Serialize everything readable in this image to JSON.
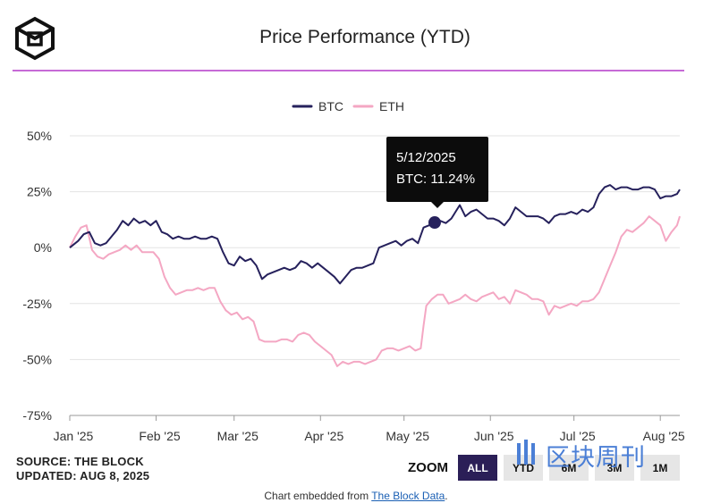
{
  "header": {
    "title": "Price Performance (YTD)",
    "logo": "the-block-cube-logo"
  },
  "legend": [
    {
      "name": "BTC",
      "color": "#26215c"
    },
    {
      "name": "ETH",
      "color": "#f4a7c3"
    }
  ],
  "tooltip": {
    "date": "5/12/2025",
    "text": "BTC: 11.24%"
  },
  "source": {
    "line1": "SOURCE: THE BLOCK",
    "line2": "UPDATED: AUG 8, 2025"
  },
  "zoom": {
    "label": "ZOOM",
    "buttons": [
      "ALL",
      "YTD",
      "6M",
      "3M",
      "1M"
    ],
    "active": "ALL"
  },
  "footer": {
    "prefix": "Chart embedded from ",
    "link": "The Block Data",
    "suffix": "."
  },
  "watermark": {
    "text": "区块周刊"
  },
  "chart_data": {
    "type": "line",
    "title": "Price Performance (YTD)",
    "x_start": "2025-01-01",
    "x_end": "2025-08-08",
    "xticks": [
      {
        "label": "Jan '25",
        "date": "2025-01-01"
      },
      {
        "label": "Feb '25",
        "date": "2025-02-01"
      },
      {
        "label": "Mar '25",
        "date": "2025-03-01"
      },
      {
        "label": "Apr '25",
        "date": "2025-04-01"
      },
      {
        "label": "May '25",
        "date": "2025-05-01"
      },
      {
        "label": "Jun '25",
        "date": "2025-06-01"
      },
      {
        "label": "Jul '25",
        "date": "2025-07-01"
      },
      {
        "label": "Aug '25",
        "date": "2025-08-01"
      }
    ],
    "yticks": [
      50,
      25,
      0,
      -25,
      -50,
      -75
    ],
    "ytick_labels": [
      "50%",
      "25%",
      "0%",
      "-25%",
      "-50%",
      "-75%"
    ],
    "ylim": [
      -75,
      50
    ],
    "grid": true,
    "legend_position": "top-center",
    "highlight": {
      "series": "BTC",
      "date": "2025-05-12",
      "value": 11.24
    },
    "series": [
      {
        "name": "BTC",
        "color": "#26215c",
        "points": [
          [
            "2025-01-01",
            0
          ],
          [
            "2025-01-04",
            3
          ],
          [
            "2025-01-06",
            6
          ],
          [
            "2025-01-08",
            7
          ],
          [
            "2025-01-10",
            2
          ],
          [
            "2025-01-12",
            1
          ],
          [
            "2025-01-14",
            2
          ],
          [
            "2025-01-16",
            5
          ],
          [
            "2025-01-18",
            8
          ],
          [
            "2025-01-20",
            12
          ],
          [
            "2025-01-22",
            10
          ],
          [
            "2025-01-24",
            13
          ],
          [
            "2025-01-26",
            11
          ],
          [
            "2025-01-28",
            12
          ],
          [
            "2025-01-30",
            10
          ],
          [
            "2025-02-01",
            12
          ],
          [
            "2025-02-03",
            7
          ],
          [
            "2025-02-05",
            6
          ],
          [
            "2025-02-07",
            4
          ],
          [
            "2025-02-09",
            5
          ],
          [
            "2025-02-11",
            4
          ],
          [
            "2025-02-13",
            4
          ],
          [
            "2025-02-15",
            5
          ],
          [
            "2025-02-17",
            4
          ],
          [
            "2025-02-19",
            4
          ],
          [
            "2025-02-21",
            5
          ],
          [
            "2025-02-23",
            4
          ],
          [
            "2025-02-25",
            -2
          ],
          [
            "2025-02-27",
            -7
          ],
          [
            "2025-03-01",
            -8
          ],
          [
            "2025-03-03",
            -4
          ],
          [
            "2025-03-05",
            -6
          ],
          [
            "2025-03-07",
            -5
          ],
          [
            "2025-03-09",
            -8
          ],
          [
            "2025-03-11",
            -14
          ],
          [
            "2025-03-13",
            -12
          ],
          [
            "2025-03-15",
            -11
          ],
          [
            "2025-03-17",
            -10
          ],
          [
            "2025-03-19",
            -9
          ],
          [
            "2025-03-21",
            -10
          ],
          [
            "2025-03-23",
            -9
          ],
          [
            "2025-03-25",
            -6
          ],
          [
            "2025-03-27",
            -7
          ],
          [
            "2025-03-29",
            -9
          ],
          [
            "2025-03-31",
            -7
          ],
          [
            "2025-04-02",
            -9
          ],
          [
            "2025-04-04",
            -11
          ],
          [
            "2025-04-06",
            -13
          ],
          [
            "2025-04-08",
            -16
          ],
          [
            "2025-04-10",
            -13
          ],
          [
            "2025-04-12",
            -10
          ],
          [
            "2025-04-14",
            -9
          ],
          [
            "2025-04-16",
            -9
          ],
          [
            "2025-04-18",
            -8
          ],
          [
            "2025-04-20",
            -7
          ],
          [
            "2025-04-22",
            0
          ],
          [
            "2025-04-24",
            1
          ],
          [
            "2025-04-26",
            2
          ],
          [
            "2025-04-28",
            3
          ],
          [
            "2025-04-30",
            1
          ],
          [
            "2025-05-02",
            3
          ],
          [
            "2025-05-04",
            4
          ],
          [
            "2025-05-06",
            2
          ],
          [
            "2025-05-08",
            9
          ],
          [
            "2025-05-10",
            10
          ],
          [
            "2025-05-12",
            11.24
          ],
          [
            "2025-05-14",
            12
          ],
          [
            "2025-05-16",
            11
          ],
          [
            "2025-05-18",
            13
          ],
          [
            "2025-05-21",
            19
          ],
          [
            "2025-05-23",
            14
          ],
          [
            "2025-05-25",
            16
          ],
          [
            "2025-05-27",
            17
          ],
          [
            "2025-05-29",
            15
          ],
          [
            "2025-05-31",
            13
          ],
          [
            "2025-06-02",
            13
          ],
          [
            "2025-06-04",
            12
          ],
          [
            "2025-06-06",
            10
          ],
          [
            "2025-06-08",
            13
          ],
          [
            "2025-06-10",
            18
          ],
          [
            "2025-06-12",
            16
          ],
          [
            "2025-06-14",
            14
          ],
          [
            "2025-06-16",
            14
          ],
          [
            "2025-06-18",
            14
          ],
          [
            "2025-06-20",
            13
          ],
          [
            "2025-06-22",
            11
          ],
          [
            "2025-06-24",
            14
          ],
          [
            "2025-06-26",
            15
          ],
          [
            "2025-06-28",
            15
          ],
          [
            "2025-06-30",
            16
          ],
          [
            "2025-07-02",
            15
          ],
          [
            "2025-07-04",
            17
          ],
          [
            "2025-07-06",
            16
          ],
          [
            "2025-07-08",
            18
          ],
          [
            "2025-07-10",
            24
          ],
          [
            "2025-07-12",
            27
          ],
          [
            "2025-07-14",
            28
          ],
          [
            "2025-07-16",
            26
          ],
          [
            "2025-07-18",
            27
          ],
          [
            "2025-07-20",
            27
          ],
          [
            "2025-07-22",
            26
          ],
          [
            "2025-07-24",
            26
          ],
          [
            "2025-07-26",
            27
          ],
          [
            "2025-07-28",
            27
          ],
          [
            "2025-07-30",
            26
          ],
          [
            "2025-08-01",
            22
          ],
          [
            "2025-08-03",
            23
          ],
          [
            "2025-08-05",
            23
          ],
          [
            "2025-08-07",
            24
          ],
          [
            "2025-08-08",
            26
          ]
        ]
      },
      {
        "name": "ETH",
        "color": "#f4a7c3",
        "points": [
          [
            "2025-01-01",
            0
          ],
          [
            "2025-01-03",
            5
          ],
          [
            "2025-01-05",
            9
          ],
          [
            "2025-01-07",
            10
          ],
          [
            "2025-01-09",
            -1
          ],
          [
            "2025-01-11",
            -4
          ],
          [
            "2025-01-13",
            -5
          ],
          [
            "2025-01-15",
            -3
          ],
          [
            "2025-01-17",
            -2
          ],
          [
            "2025-01-19",
            -1
          ],
          [
            "2025-01-21",
            1
          ],
          [
            "2025-01-23",
            -1
          ],
          [
            "2025-01-25",
            1
          ],
          [
            "2025-01-27",
            -2
          ],
          [
            "2025-01-29",
            -2
          ],
          [
            "2025-01-31",
            -2
          ],
          [
            "2025-02-02",
            -5
          ],
          [
            "2025-02-04",
            -13
          ],
          [
            "2025-02-06",
            -18
          ],
          [
            "2025-02-08",
            -21
          ],
          [
            "2025-02-10",
            -20
          ],
          [
            "2025-02-12",
            -19
          ],
          [
            "2025-02-14",
            -19
          ],
          [
            "2025-02-16",
            -18
          ],
          [
            "2025-02-18",
            -19
          ],
          [
            "2025-02-20",
            -18
          ],
          [
            "2025-02-22",
            -18
          ],
          [
            "2025-02-24",
            -24
          ],
          [
            "2025-02-26",
            -28
          ],
          [
            "2025-02-28",
            -30
          ],
          [
            "2025-03-02",
            -29
          ],
          [
            "2025-03-04",
            -32
          ],
          [
            "2025-03-06",
            -31
          ],
          [
            "2025-03-08",
            -33
          ],
          [
            "2025-03-10",
            -41
          ],
          [
            "2025-03-12",
            -42
          ],
          [
            "2025-03-14",
            -42
          ],
          [
            "2025-03-16",
            -42
          ],
          [
            "2025-03-18",
            -41
          ],
          [
            "2025-03-20",
            -41
          ],
          [
            "2025-03-22",
            -42
          ],
          [
            "2025-03-24",
            -39
          ],
          [
            "2025-03-26",
            -38
          ],
          [
            "2025-03-28",
            -39
          ],
          [
            "2025-03-30",
            -42
          ],
          [
            "2025-04-01",
            -44
          ],
          [
            "2025-04-03",
            -46
          ],
          [
            "2025-04-05",
            -48
          ],
          [
            "2025-04-07",
            -53
          ],
          [
            "2025-04-09",
            -51
          ],
          [
            "2025-04-11",
            -52
          ],
          [
            "2025-04-13",
            -51
          ],
          [
            "2025-04-15",
            -51
          ],
          [
            "2025-04-17",
            -52
          ],
          [
            "2025-04-19",
            -51
          ],
          [
            "2025-04-21",
            -50
          ],
          [
            "2025-04-23",
            -46
          ],
          [
            "2025-04-25",
            -45
          ],
          [
            "2025-04-27",
            -45
          ],
          [
            "2025-04-29",
            -46
          ],
          [
            "2025-05-01",
            -45
          ],
          [
            "2025-05-03",
            -44
          ],
          [
            "2025-05-05",
            -46
          ],
          [
            "2025-05-07",
            -45
          ],
          [
            "2025-05-08",
            -35
          ],
          [
            "2025-05-09",
            -26
          ],
          [
            "2025-05-11",
            -23
          ],
          [
            "2025-05-13",
            -21
          ],
          [
            "2025-05-15",
            -21
          ],
          [
            "2025-05-17",
            -25
          ],
          [
            "2025-05-19",
            -24
          ],
          [
            "2025-05-21",
            -23
          ],
          [
            "2025-05-23",
            -21
          ],
          [
            "2025-05-25",
            -23
          ],
          [
            "2025-05-27",
            -24
          ],
          [
            "2025-05-29",
            -22
          ],
          [
            "2025-05-31",
            -21
          ],
          [
            "2025-06-02",
            -20
          ],
          [
            "2025-06-04",
            -23
          ],
          [
            "2025-06-06",
            -22
          ],
          [
            "2025-06-08",
            -25
          ],
          [
            "2025-06-10",
            -19
          ],
          [
            "2025-06-12",
            -20
          ],
          [
            "2025-06-14",
            -21
          ],
          [
            "2025-06-16",
            -23
          ],
          [
            "2025-06-18",
            -23
          ],
          [
            "2025-06-20",
            -24
          ],
          [
            "2025-06-22",
            -30
          ],
          [
            "2025-06-24",
            -26
          ],
          [
            "2025-06-26",
            -27
          ],
          [
            "2025-06-28",
            -26
          ],
          [
            "2025-06-30",
            -25
          ],
          [
            "2025-07-02",
            -26
          ],
          [
            "2025-07-04",
            -24
          ],
          [
            "2025-07-06",
            -24
          ],
          [
            "2025-07-08",
            -23
          ],
          [
            "2025-07-10",
            -20
          ],
          [
            "2025-07-12",
            -14
          ],
          [
            "2025-07-14",
            -8
          ],
          [
            "2025-07-16",
            -2
          ],
          [
            "2025-07-18",
            5
          ],
          [
            "2025-07-20",
            8
          ],
          [
            "2025-07-22",
            7
          ],
          [
            "2025-07-24",
            9
          ],
          [
            "2025-07-26",
            11
          ],
          [
            "2025-07-28",
            14
          ],
          [
            "2025-07-30",
            12
          ],
          [
            "2025-08-01",
            10
          ],
          [
            "2025-08-03",
            3
          ],
          [
            "2025-08-05",
            7
          ],
          [
            "2025-08-07",
            10
          ],
          [
            "2025-08-08",
            14
          ]
        ]
      }
    ]
  }
}
